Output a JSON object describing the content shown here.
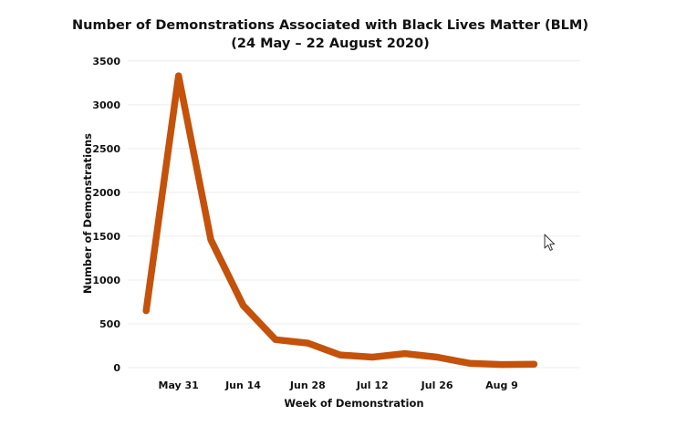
{
  "chart_data": {
    "type": "line",
    "title": "Number of Demonstrations Associated with Black Lives Matter (BLM)",
    "subtitle": "(24 May – 22 August 2020)",
    "xlabel": "Week of Demonstration",
    "ylabel": "Number of Demonstrations",
    "x_tick_labels": [
      "May 31",
      "Jun 14",
      "Jun 28",
      "Jul 12",
      "Jul 26",
      "Aug 9"
    ],
    "x_tick_dates": [
      "2020-05-31",
      "2020-06-14",
      "2020-06-28",
      "2020-07-12",
      "2020-07-26",
      "2020-08-09"
    ],
    "xlim": [
      "2020-05-20",
      "2020-08-26"
    ],
    "y_tick_labels": [
      "0",
      "500",
      "1000",
      "1500",
      "2000",
      "2500",
      "3000",
      "3500"
    ],
    "ylim": [
      0,
      3550
    ],
    "grid": true,
    "legend": "none",
    "series": [
      {
        "color": "#c4520a",
        "x": [
          "2020-05-24",
          "2020-05-31",
          "2020-06-07",
          "2020-06-14",
          "2020-06-21",
          "2020-06-28",
          "2020-07-05",
          "2020-07-12",
          "2020-07-19",
          "2020-07-26",
          "2020-08-02",
          "2020-08-09",
          "2020-08-16"
        ],
        "values": [
          650,
          3330,
          1460,
          710,
          320,
          280,
          145,
          120,
          160,
          120,
          50,
          35,
          40
        ]
      }
    ]
  }
}
